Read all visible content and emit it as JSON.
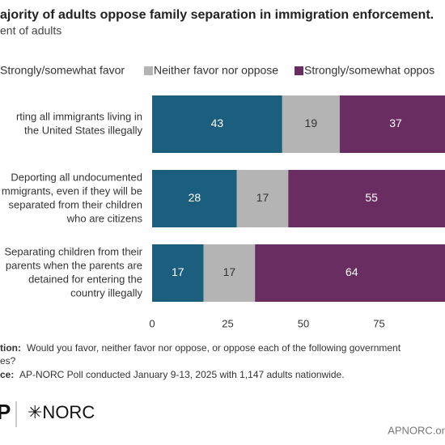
{
  "chart_data": {
    "type": "stacked-bar-horizontal",
    "title": "ajority of adults oppose family separation in immigration enforcement.",
    "subtitle": "ent of adults",
    "categories": [
      [
        "rting all immigrants living in",
        "the United States illegally"
      ],
      [
        "Deporting all undocumented",
        "mmigrants, even if they will be",
        "separated from their children",
        "who are citizens"
      ],
      [
        "Separating children from their",
        "parents when the parents are",
        "detained for entering the",
        "country illegally"
      ]
    ],
    "series": [
      {
        "name": "Strongly/somewhat favor",
        "color": "#1b5e7d",
        "values": [
          43,
          28,
          17
        ]
      },
      {
        "name": "Neither favor nor oppose",
        "color": "#b4b4b4",
        "values": [
          19,
          17,
          17
        ]
      },
      {
        "name": "Strongly/somewhat oppos",
        "color": "#6a2d62",
        "values": [
          37,
          55,
          64
        ]
      }
    ],
    "xlim": [
      0,
      100
    ],
    "xticks": [
      0,
      25,
      50,
      75
    ],
    "legend": "top"
  },
  "notes": {
    "question_label": "tion:",
    "question_text": [
      "Would you favor, neither favor nor oppose, or oppose each of the following government",
      "es?"
    ],
    "source_label": "ce:",
    "source_text": "AP-NORC Poll conducted January 9-13, 2025 with 1,147 adults nationwide."
  },
  "logos": {
    "ap": "P",
    "norc": "✳NORC"
  },
  "credit": "APNORC.or"
}
